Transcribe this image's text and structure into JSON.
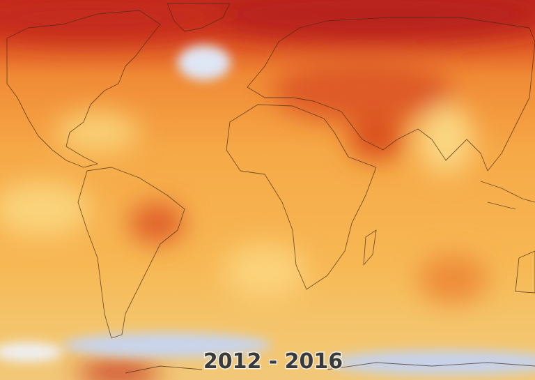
{
  "caption": "2012 - 2016"
}
